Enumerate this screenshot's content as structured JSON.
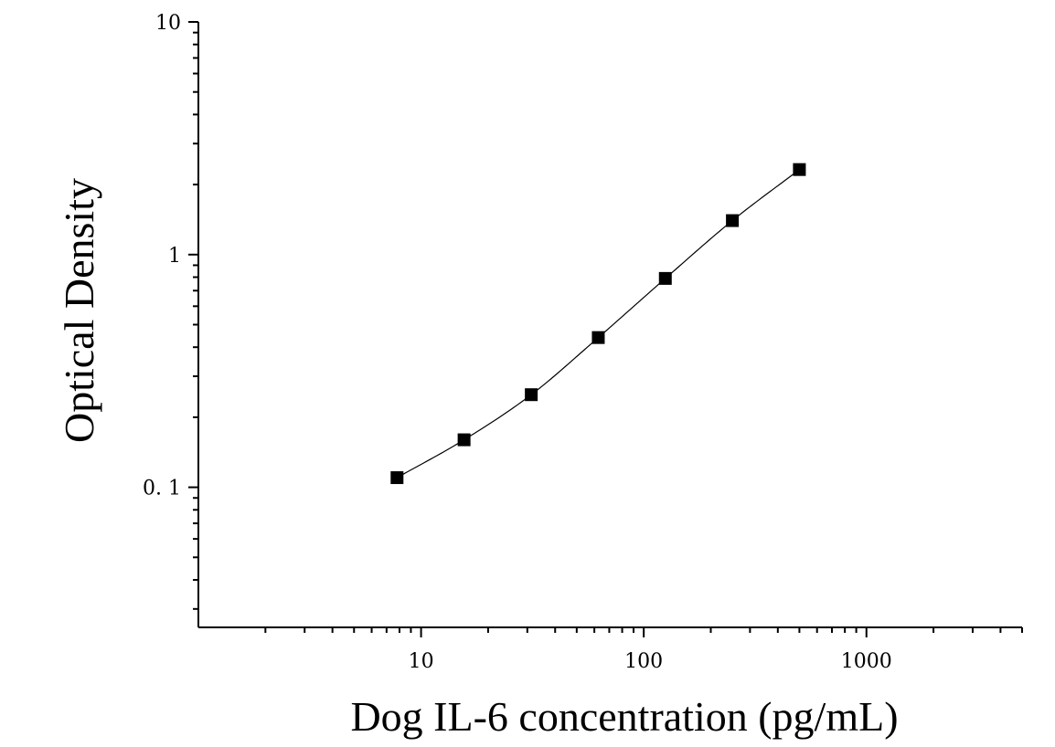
{
  "chart_data": {
    "type": "scatter",
    "title": "",
    "xlabel": "Dog IL-6 concentration (pg/mL)",
    "ylabel": "Optical Density",
    "x_scale": "log",
    "y_scale": "log",
    "xlim": [
      1,
      5000
    ],
    "ylim": [
      0.025,
      10
    ],
    "x_ticks": [
      {
        "value": 10,
        "label": "10"
      },
      {
        "value": 100,
        "label": "100"
      },
      {
        "value": 1000,
        "label": "1000"
      }
    ],
    "y_ticks": [
      {
        "value": 0.1,
        "label": "0. 1"
      },
      {
        "value": 1,
        "label": "1"
      },
      {
        "value": 10,
        "label": "10"
      }
    ],
    "grid": false,
    "legend": "none",
    "marker": "square",
    "fit_curve": true,
    "series": [
      {
        "x": [
          7.8,
          15.6,
          31.25,
          62.5,
          125,
          250,
          500
        ],
        "y": [
          0.11,
          0.16,
          0.25,
          0.44,
          0.79,
          1.4,
          2.32
        ]
      }
    ],
    "colors": {
      "marker": "#000000",
      "line": "#000000",
      "axis": "#000000"
    }
  }
}
